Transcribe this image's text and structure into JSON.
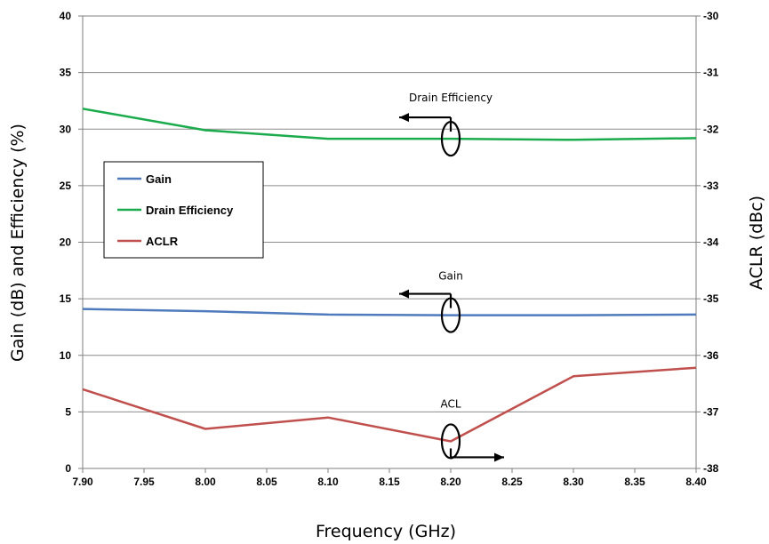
{
  "chart_data": {
    "type": "line",
    "xlabel": "Frequency (GHz)",
    "ylabel_left": "Gain (dB) and Efficiency (%)",
    "ylabel_right": "ACLR (dBc)",
    "xlim": [
      7.9,
      8.4
    ],
    "ylim_left": [
      0,
      40
    ],
    "ylim_right": [
      -38,
      -30
    ],
    "x_ticks": [
      "7.90",
      "7.95",
      "8.00",
      "8.05",
      "8.10",
      "8.15",
      "8.20",
      "8.25",
      "8.30",
      "8.35",
      "8.40"
    ],
    "y_left_ticks": [
      "0",
      "5",
      "10",
      "15",
      "20",
      "25",
      "30",
      "35",
      "40"
    ],
    "y_right_ticks": [
      "-38",
      "-37",
      "-36",
      "-35",
      "-34",
      "-33",
      "-32",
      "-31",
      "-30"
    ],
    "grid": "horizontal",
    "legend_position": "left",
    "series": [
      {
        "name": "Gain",
        "axis": "left",
        "color": "#4f7bbd",
        "x": [
          7.9,
          8.0,
          8.1,
          8.2,
          8.3,
          8.4
        ],
        "values": [
          14.1,
          13.9,
          13.6,
          13.55,
          13.55,
          13.6
        ]
      },
      {
        "name": "Drain Efficiency",
        "axis": "left",
        "color": "#1aab4c",
        "x": [
          7.9,
          8.0,
          8.1,
          8.2,
          8.3,
          8.4
        ],
        "values": [
          31.8,
          29.9,
          29.15,
          29.15,
          29.05,
          29.2
        ]
      },
      {
        "name": "ACLR",
        "axis": "right",
        "color": "#c0504d",
        "x": [
          7.9,
          8.0,
          8.1,
          8.2,
          8.3,
          8.4
        ],
        "values": [
          -36.6,
          -37.3,
          -37.1,
          -37.52,
          -36.37,
          -36.22
        ]
      }
    ],
    "annotations": [
      {
        "label": "Drain Efficiency",
        "x": 8.2,
        "series": "Drain Efficiency",
        "arrow": "left"
      },
      {
        "label": "Gain",
        "x": 8.2,
        "series": "Gain",
        "arrow": "left"
      },
      {
        "label": "ACL",
        "x": 8.2,
        "series": "ACLR",
        "arrow": "right"
      }
    ]
  }
}
